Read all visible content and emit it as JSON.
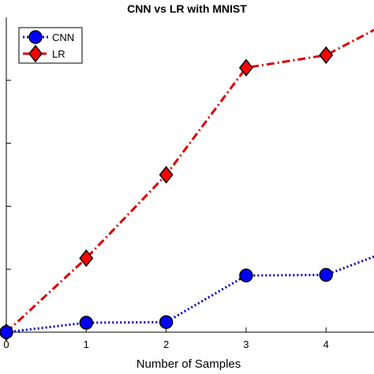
{
  "chart_data": {
    "type": "line",
    "title": "CNN vs LR with MNIST",
    "xlabel": "Number of Samples",
    "ylabel": "",
    "x_ticks": [
      "0",
      "1",
      "2",
      "3",
      "4"
    ],
    "xlim": [
      0,
      4.6
    ],
    "ylim": [
      0,
      1
    ],
    "grid": false,
    "legend_position": "top-left",
    "series": [
      {
        "name": "CNN",
        "color": "#0000cc",
        "marker": "circle",
        "marker_fill": "#0000ff",
        "line_style": "dotted",
        "x": [
          0,
          1,
          2,
          3,
          4,
          4.6
        ],
        "y": [
          0.0,
          0.03,
          0.032,
          0.18,
          0.182,
          0.24
        ]
      },
      {
        "name": "LR",
        "color": "#dd0000",
        "marker": "diamond",
        "marker_fill": "#ff0000",
        "line_style": "dash-dot",
        "x": [
          0,
          1,
          2,
          3,
          4,
          4.6
        ],
        "y": [
          0.0,
          0.235,
          0.5,
          0.84,
          0.88,
          0.96
        ]
      }
    ]
  }
}
